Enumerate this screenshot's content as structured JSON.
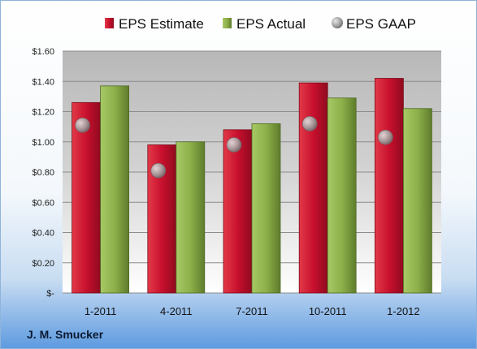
{
  "company": "J. M. Smucker",
  "chart_data": {
    "type": "bar",
    "categories": [
      "1-2011",
      "4-2011",
      "7-2011",
      "10-2011",
      "1-2012"
    ],
    "series": [
      {
        "name": "EPS Estimate",
        "kind": "bar",
        "color": "#c8102e",
        "values": [
          1.26,
          0.98,
          1.08,
          1.39,
          1.42
        ]
      },
      {
        "name": "EPS Actual",
        "kind": "bar",
        "color": "#8db04a",
        "values": [
          1.37,
          1.0,
          1.12,
          1.29,
          1.22
        ]
      },
      {
        "name": "EPS GAAP",
        "kind": "marker",
        "color": "#a9a9a9",
        "values": [
          1.11,
          0.81,
          0.98,
          1.12,
          1.03
        ]
      }
    ],
    "ylim": [
      0,
      1.6
    ],
    "yticks": [
      0,
      0.2,
      0.4,
      0.6,
      0.8,
      1.0,
      1.2,
      1.4,
      1.6
    ],
    "ytick_labels": [
      "$-",
      "$0.20",
      "$0.40",
      "$0.60",
      "$0.80",
      "$1.00",
      "$1.20",
      "$1.40",
      "$1.60"
    ],
    "grid": true,
    "legend_position": "top"
  }
}
